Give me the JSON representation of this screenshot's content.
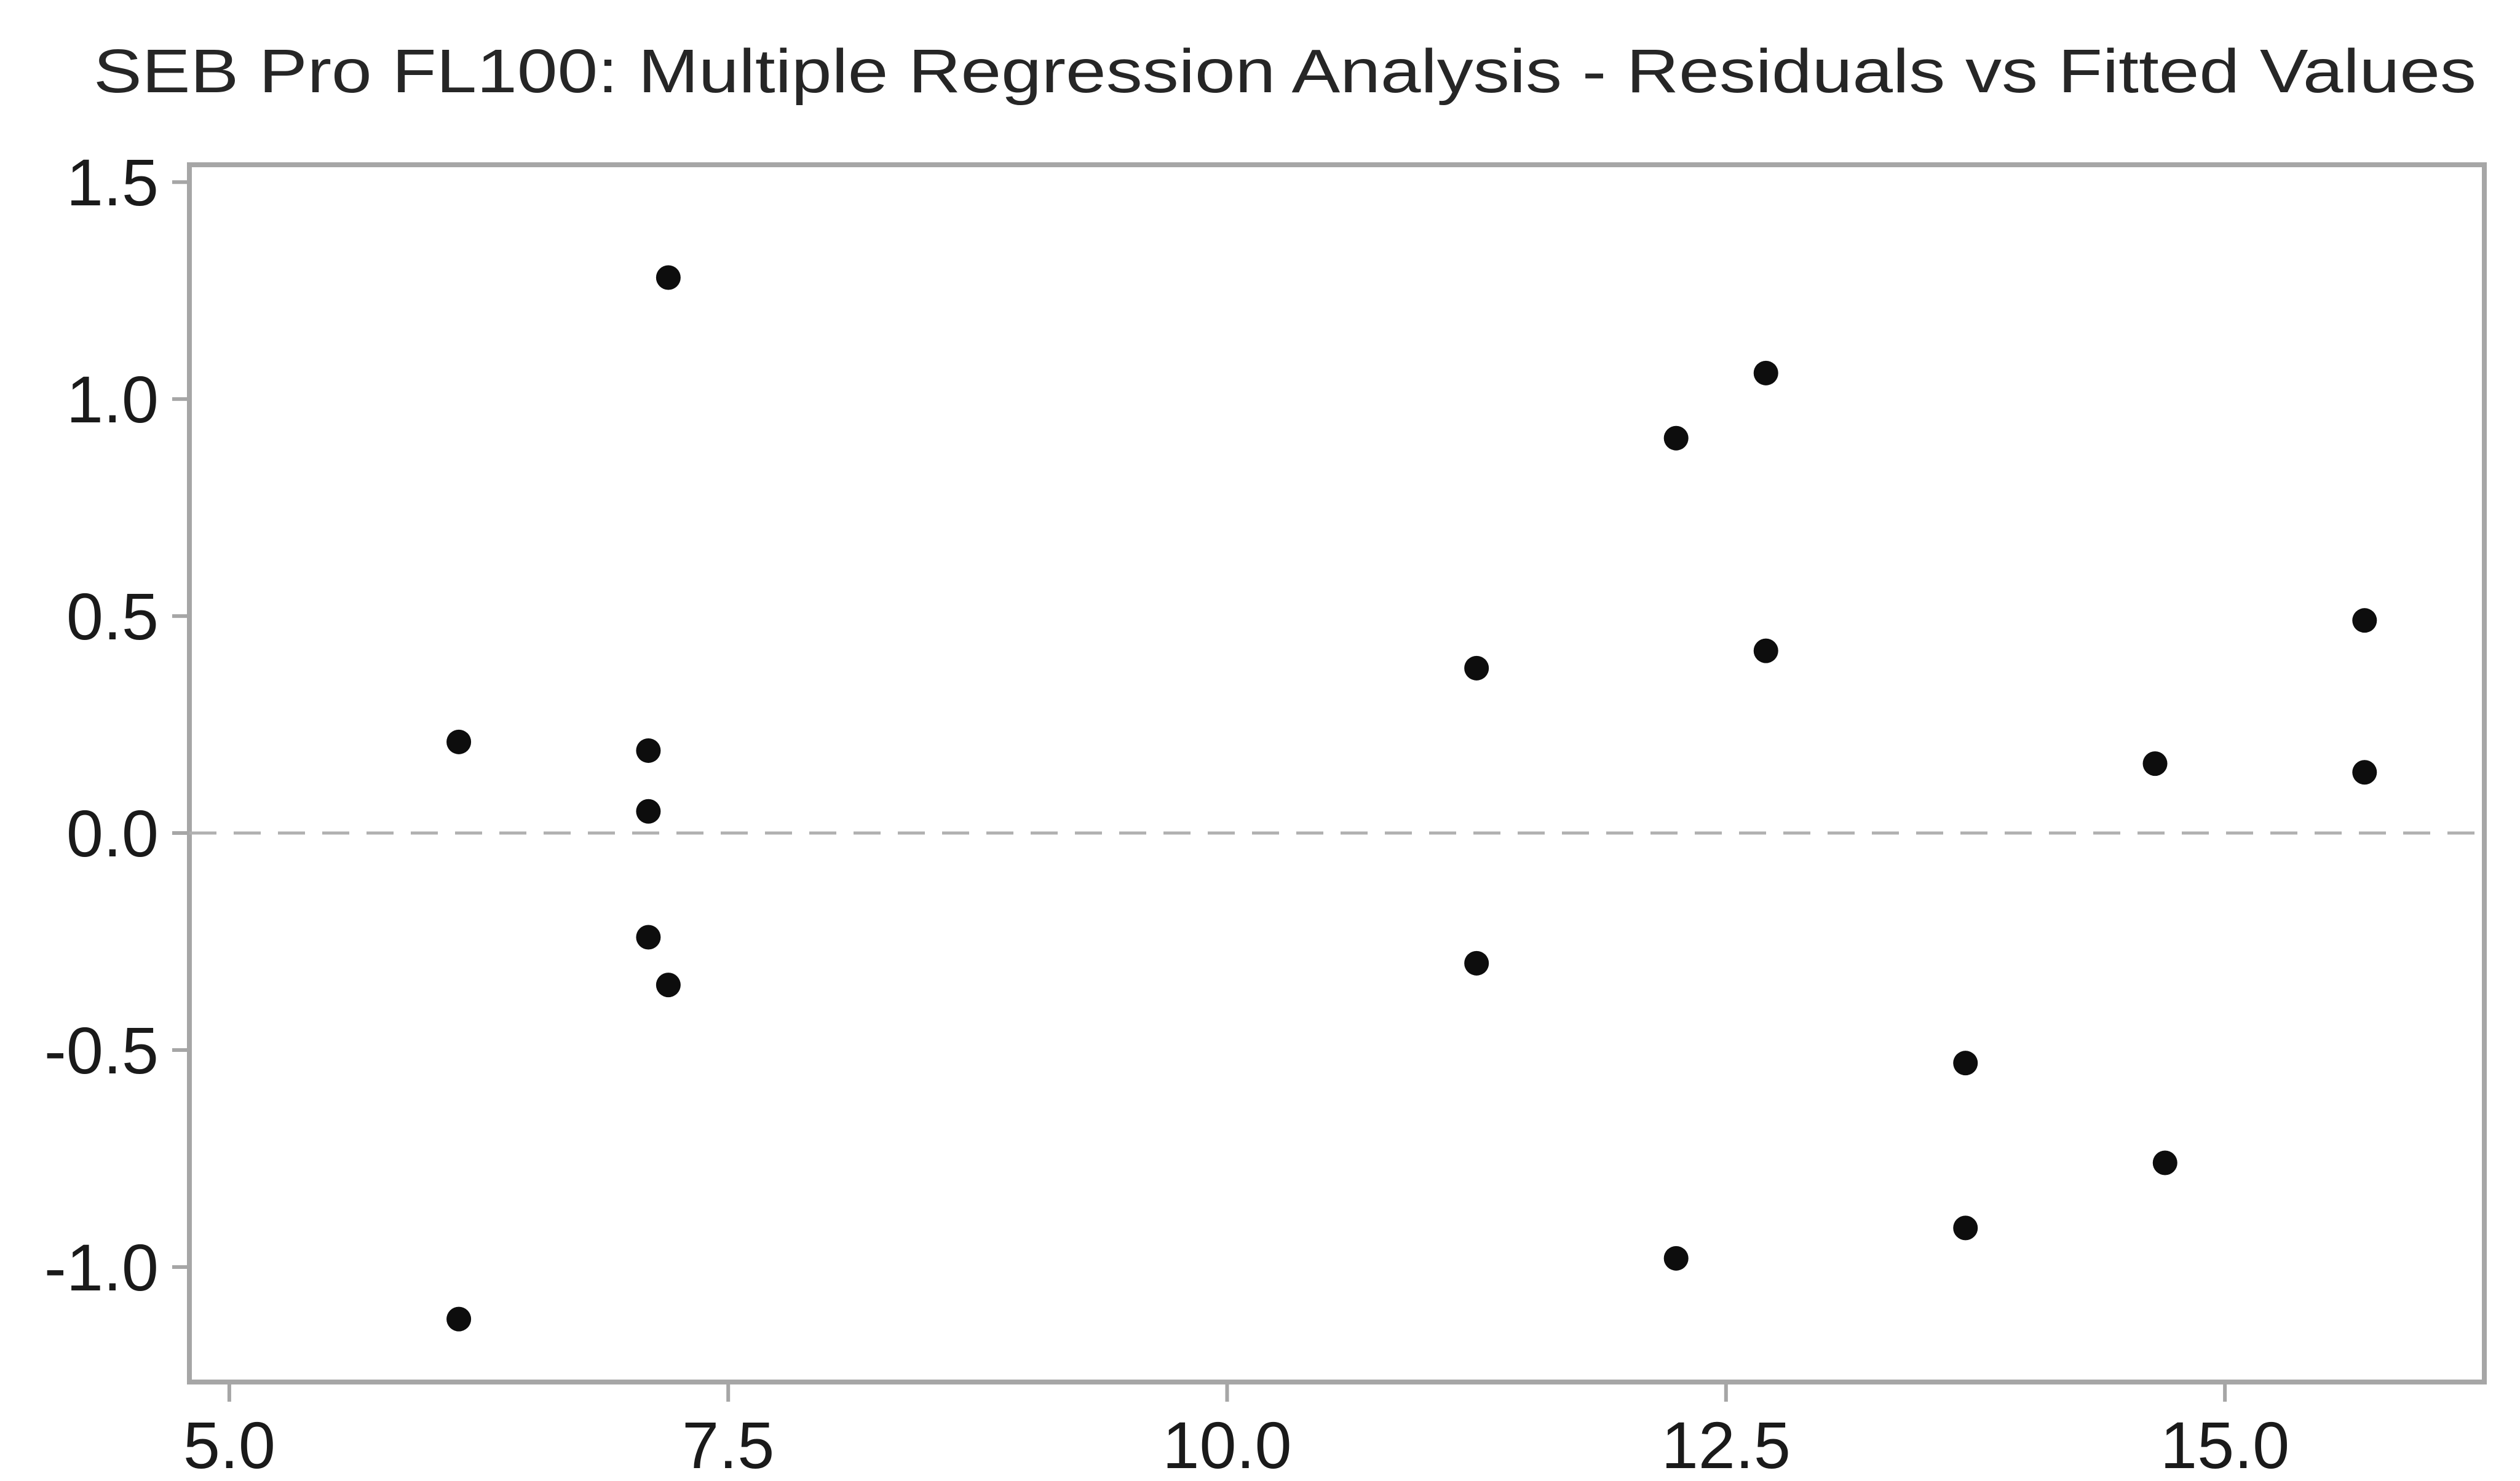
{
  "chart_data": {
    "type": "scatter",
    "title": "SEB Pro FL100: Multiple Regression Analysis - Residuals vs Fitted Values",
    "xlabel": "",
    "ylabel": "",
    "xlim": [
      4.8,
      16.3
    ],
    "ylim": [
      -1.265,
      1.54
    ],
    "grid": false,
    "legend": false,
    "reference_line_y": 0.0,
    "x_ticks": {
      "values": [
        5.0,
        7.5,
        10.0,
        12.5,
        15.0
      ],
      "labels": [
        "5.0",
        "7.5",
        "10.0",
        "12.5",
        "15.0"
      ]
    },
    "y_ticks": {
      "values": [
        1.5,
        1.0,
        0.5,
        0.0,
        -0.5,
        -1.0
      ],
      "labels": [
        "1.5",
        "1.0",
        "0.5",
        "0.0",
        "-0.5",
        "-1.0"
      ]
    },
    "marker": {
      "shape": "circle",
      "color": "#0d0d0d",
      "radius_px": 20
    },
    "colors": {
      "background": "#ffffff",
      "axis_border": "#a6a6a6",
      "tick_mark": "#a6a6a6",
      "tick_label": "#1a1a1a",
      "title": "#262626",
      "reference_line": "#b0b0b0"
    },
    "points": [
      {
        "x": 6.15,
        "y": 0.21
      },
      {
        "x": 6.15,
        "y": -1.12
      },
      {
        "x": 7.2,
        "y": 1.28
      },
      {
        "x": 7.1,
        "y": 0.19
      },
      {
        "x": 7.1,
        "y": 0.05
      },
      {
        "x": 7.1,
        "y": -0.24
      },
      {
        "x": 7.2,
        "y": -0.35
      },
      {
        "x": 11.25,
        "y": 0.38
      },
      {
        "x": 11.25,
        "y": -0.3
      },
      {
        "x": 12.25,
        "y": 0.91
      },
      {
        "x": 12.25,
        "y": -0.98
      },
      {
        "x": 12.7,
        "y": 1.06
      },
      {
        "x": 12.7,
        "y": 0.42
      },
      {
        "x": 13.7,
        "y": -0.53
      },
      {
        "x": 13.7,
        "y": -0.91
      },
      {
        "x": 14.65,
        "y": 0.16
      },
      {
        "x": 14.7,
        "y": -0.76
      },
      {
        "x": 15.7,
        "y": 0.49
      },
      {
        "x": 15.7,
        "y": 0.14
      }
    ]
  }
}
